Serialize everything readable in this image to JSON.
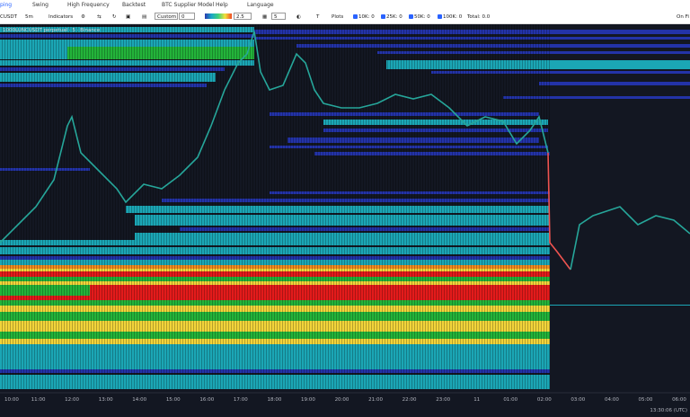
{
  "menu": [
    "ping",
    "Swing",
    "High Frequency",
    "Backtest",
    "BTC Supplier Model",
    "Help",
    "Language"
  ],
  "toolbar": {
    "symbol": "CUSDT",
    "interval": "5m",
    "indicators": "Indicators",
    "mode": "Custom",
    "min": "0",
    "scale": "2.5",
    "step": "5",
    "plots": "Plots",
    "filters": [
      "10K: 0",
      "25K: 0",
      "50K: 0",
      "100K: 0"
    ],
    "total": "Total: 0.0",
    "right": "On Fi"
  },
  "chart": {
    "legend": "1000LUNCUSDT perpetual · 5 · Binance",
    "time_labels": [
      "10:00",
      "11:00",
      "12:00",
      "13:00",
      "14:00",
      "15:00",
      "16:00",
      "17:00",
      "18:00",
      "19:00",
      "20:00",
      "21:00",
      "22:00",
      "23:00",
      "11",
      "01:00",
      "02:00",
      "03:00",
      "04:00",
      "05:00",
      "06:00"
    ],
    "clock": "13:30:06 (UTC)"
  }
}
